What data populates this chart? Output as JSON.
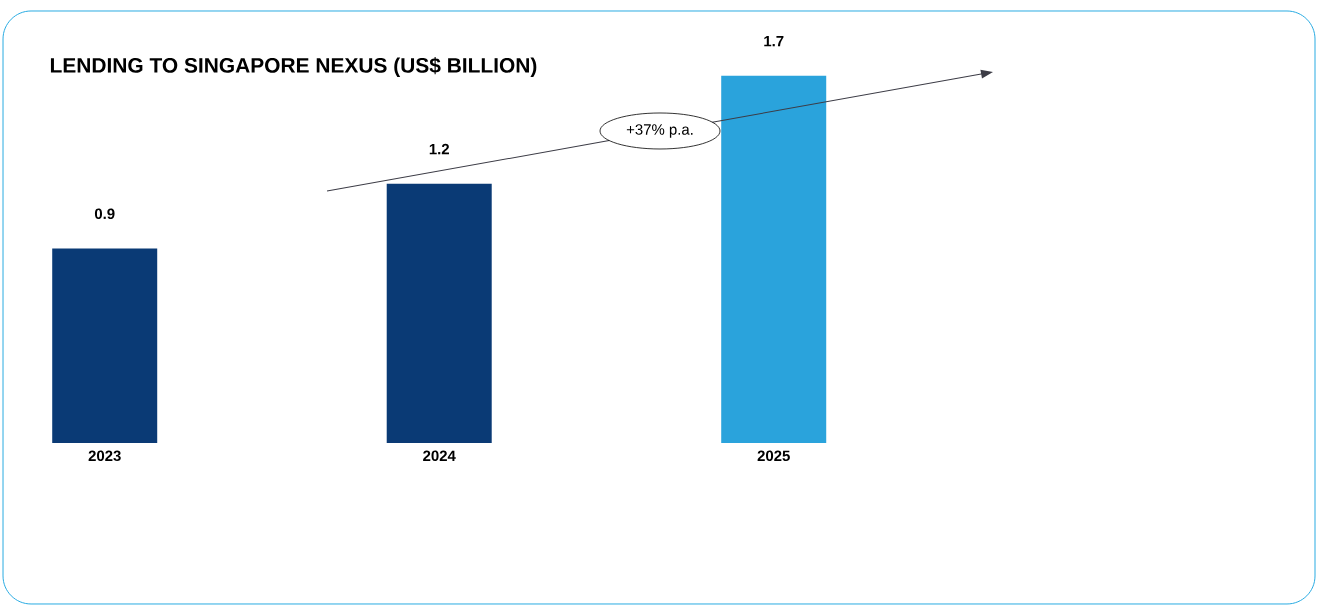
{
  "chart_data": {
    "type": "bar",
    "title": "LENDING TO SINGAPORE NEXUS (US$ BILLION)",
    "categories": [
      "2023",
      "2024",
      "2025"
    ],
    "values": [
      0.9,
      1.2,
      1.7
    ],
    "colors": [
      "#0a3a75",
      "#0a3a75",
      "#2aa3dc"
    ],
    "data_labels": true,
    "annotations": [
      "+37% p.a."
    ]
  }
}
